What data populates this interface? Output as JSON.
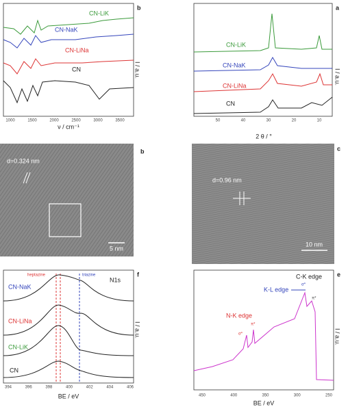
{
  "panels": [
    {
      "letter": "b",
      "series": [
        "CN-LiK",
        "CN-NaK",
        "CN-LiNa",
        "CN"
      ],
      "xlabel": "ν / cm⁻¹",
      "ylabel": "I / a.u.",
      "xticks": [
        "1000",
        "1500",
        "2000",
        "2500",
        "3000",
        "3500"
      ]
    },
    {
      "letter": "a",
      "series": [
        "CN-LiK",
        "CN-NaK",
        "CN-LiNa",
        "CN"
      ],
      "xlabel": "2 θ / °",
      "ylabel": "I / a.u.",
      "xticks": [
        "50",
        "40",
        "30",
        "20",
        "10"
      ]
    },
    {
      "letter": "b",
      "annotation": "d=0.324 nm",
      "scale": "5 nm"
    },
    {
      "letter": "c",
      "annotation": "d=0.96 nm",
      "scale": "10 nm"
    },
    {
      "letter": "f",
      "annotations": [
        "heptazine",
        "triazine",
        "N1s"
      ],
      "series": [
        "CN-NaK",
        "CN-LiNa",
        "CN-LiK",
        "CN"
      ],
      "xlabel": "BE / eV",
      "ylabel": "I / a.u.",
      "xticks": [
        "394",
        "396",
        "398",
        "400",
        "402",
        "404",
        "406"
      ]
    },
    {
      "letter": "e",
      "annotations": [
        "C-K edge",
        "σ*",
        "K-L edge",
        "π*",
        "N-K edge",
        "π*",
        "σ*"
      ],
      "xlabel": "BE / eV",
      "ylabel": "I / a.u.",
      "xticks": [
        "450",
        "400",
        "350",
        "300",
        "250"
      ]
    }
  ]
}
